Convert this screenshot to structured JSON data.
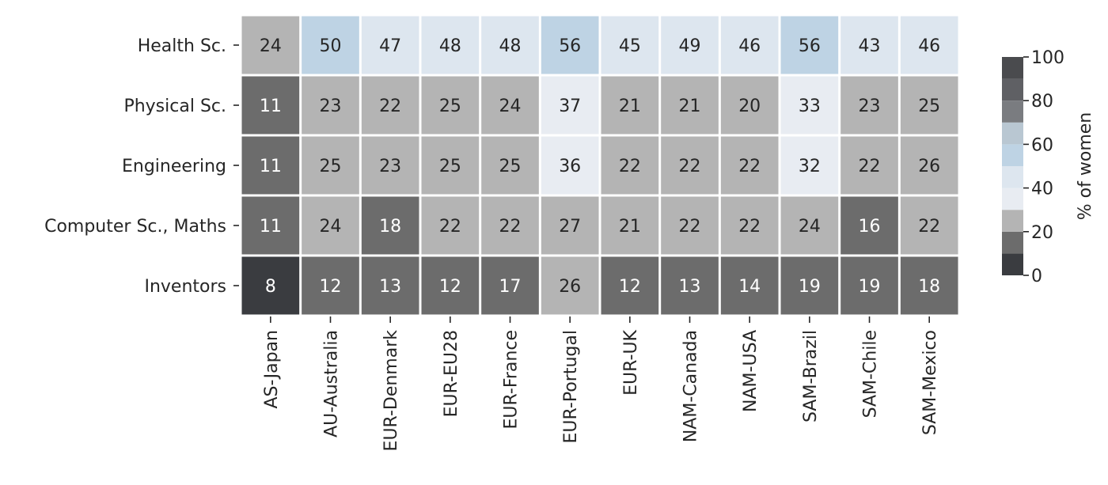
{
  "chart_data": {
    "type": "heatmap",
    "rows": [
      "Health Sc.",
      "Physical Sc.",
      "Engineering",
      "Computer Sc., Maths",
      "Inventors"
    ],
    "columns": [
      "AS-Japan",
      "AU-Australia",
      "EUR-Denmark",
      "EUR-EU28",
      "EUR-France",
      "EUR-Portugal",
      "EUR-UK",
      "NAM-Canada",
      "NAM-USA",
      "SAM-Brazil",
      "SAM-Chile",
      "SAM-Mexico"
    ],
    "values": [
      [
        24,
        50,
        47,
        48,
        48,
        56,
        45,
        49,
        46,
        56,
        43,
        46
      ],
      [
        11,
        23,
        22,
        25,
        24,
        37,
        21,
        21,
        20,
        33,
        23,
        25
      ],
      [
        11,
        25,
        23,
        25,
        25,
        36,
        22,
        22,
        22,
        32,
        22,
        26
      ],
      [
        11,
        24,
        18,
        22,
        22,
        27,
        21,
        22,
        22,
        24,
        16,
        22
      ],
      [
        8,
        12,
        13,
        12,
        17,
        26,
        12,
        13,
        14,
        19,
        19,
        18
      ]
    ],
    "colorbar": {
      "label": "% of women",
      "range": [
        0,
        100
      ],
      "ticks": [
        0,
        20,
        40,
        60,
        80,
        100
      ],
      "bins": [
        {
          "from": 0,
          "to": 10,
          "color": "#3a3c40"
        },
        {
          "from": 10,
          "to": 20,
          "color": "#6c6c6c"
        },
        {
          "from": 20,
          "to": 30,
          "color": "#b4b4b4"
        },
        {
          "from": 30,
          "to": 40,
          "color": "#e8ecf2"
        },
        {
          "from": 40,
          "to": 50,
          "color": "#dde6ef"
        },
        {
          "from": 50,
          "to": 60,
          "color": "#bed3e4"
        },
        {
          "from": 60,
          "to": 70,
          "color": "#b9c7d2"
        },
        {
          "from": 70,
          "to": 80,
          "color": "#7a7c80"
        },
        {
          "from": 80,
          "to": 90,
          "color": "#5f6064"
        },
        {
          "from": 90,
          "to": 100,
          "color": "#4a4b4e"
        }
      ]
    },
    "text_color_dark": "#262626",
    "text_color_light": "#ffffff"
  }
}
